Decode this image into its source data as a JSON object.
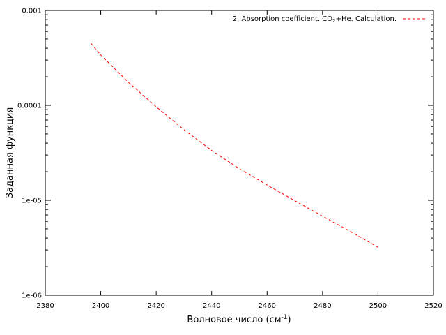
{
  "chart_data": {
    "type": "line",
    "xlabel": "Волновое число (см",
    "xlabel_sup": "-1",
    "xlabel_close": ")",
    "ylabel": "Заданная функция",
    "xlim": [
      2380,
      2520
    ],
    "ylim": [
      1e-06,
      0.001
    ],
    "yscale": "log",
    "grid": false,
    "legend_position": "top-right",
    "x_ticks": [
      2380,
      2400,
      2420,
      2440,
      2460,
      2480,
      2500,
      2520
    ],
    "x_tick_labels": [
      "2380",
      "2400",
      "2420",
      "2440",
      "2460",
      "2480",
      "2500",
      "2520"
    ],
    "y_ticks": [
      1e-06,
      1e-05,
      0.0001,
      0.001
    ],
    "y_tick_labels": [
      "1e-06",
      "1e-05",
      "0.0001",
      "0.001"
    ],
    "series": [
      {
        "name": "2. Absorption coefficient. CO",
        "name_sub": "2",
        "name_rest": "+He. Calculation.",
        "color": "#ff0000",
        "dash": "dashed",
        "x": [
          2396.5,
          2400,
          2410,
          2420,
          2430,
          2440,
          2450,
          2460,
          2470,
          2480,
          2490,
          2500
        ],
        "y": [
          0.00045,
          0.00034,
          0.000175,
          9.65e-05,
          5.55e-05,
          3.35e-05,
          2.15e-05,
          1.45e-05,
          9.9e-06,
          6.8e-06,
          4.7e-06,
          3.2e-06
        ]
      }
    ]
  }
}
